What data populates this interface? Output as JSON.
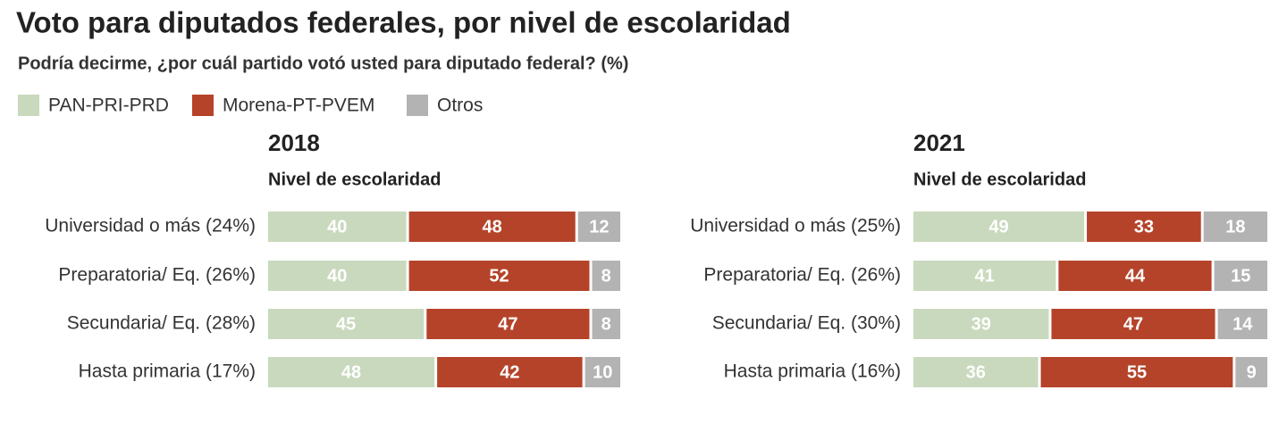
{
  "title": "Voto para diputados federales, por nivel de escolaridad",
  "subtitle": "Podría decirme, ¿por cuál partido votó usted para diputado federal? (%)",
  "chart_data": [
    {
      "type": "bar",
      "stacked": true,
      "orientation": "horizontal",
      "title": "2018",
      "subtitle": "Nivel de escolaridad",
      "categories": [
        "Universidad o más (24%)",
        "Preparatoria/ Eq. (26%)",
        "Secundaria/ Eq. (28%)",
        "Hasta primaria (17%)"
      ],
      "series": [
        {
          "name": "PAN-PRI-PRD",
          "color": "#c9d9bd",
          "values": [
            40,
            40,
            45,
            48
          ]
        },
        {
          "name": "Morena-PT-PVEM",
          "color": "#b5432a",
          "values": [
            48,
            52,
            47,
            42
          ]
        },
        {
          "name": "Otros",
          "color": "#b3b3b3",
          "values": [
            12,
            8,
            8,
            10
          ]
        }
      ]
    },
    {
      "type": "bar",
      "stacked": true,
      "orientation": "horizontal",
      "title": "2021",
      "subtitle": "Nivel de escolaridad",
      "categories": [
        "Universidad o más (25%)",
        "Preparatoria/ Eq. (26%)",
        "Secundaria/ Eq. (30%)",
        "Hasta primaria (16%)"
      ],
      "series": [
        {
          "name": "PAN-PRI-PRD",
          "color": "#c9d9bd",
          "values": [
            49,
            41,
            39,
            36
          ]
        },
        {
          "name": "Morena-PT-PVEM",
          "color": "#b5432a",
          "values": [
            33,
            44,
            47,
            55
          ]
        },
        {
          "name": "Otros",
          "color": "#b3b3b3",
          "values": [
            18,
            15,
            14,
            9
          ]
        }
      ]
    }
  ]
}
